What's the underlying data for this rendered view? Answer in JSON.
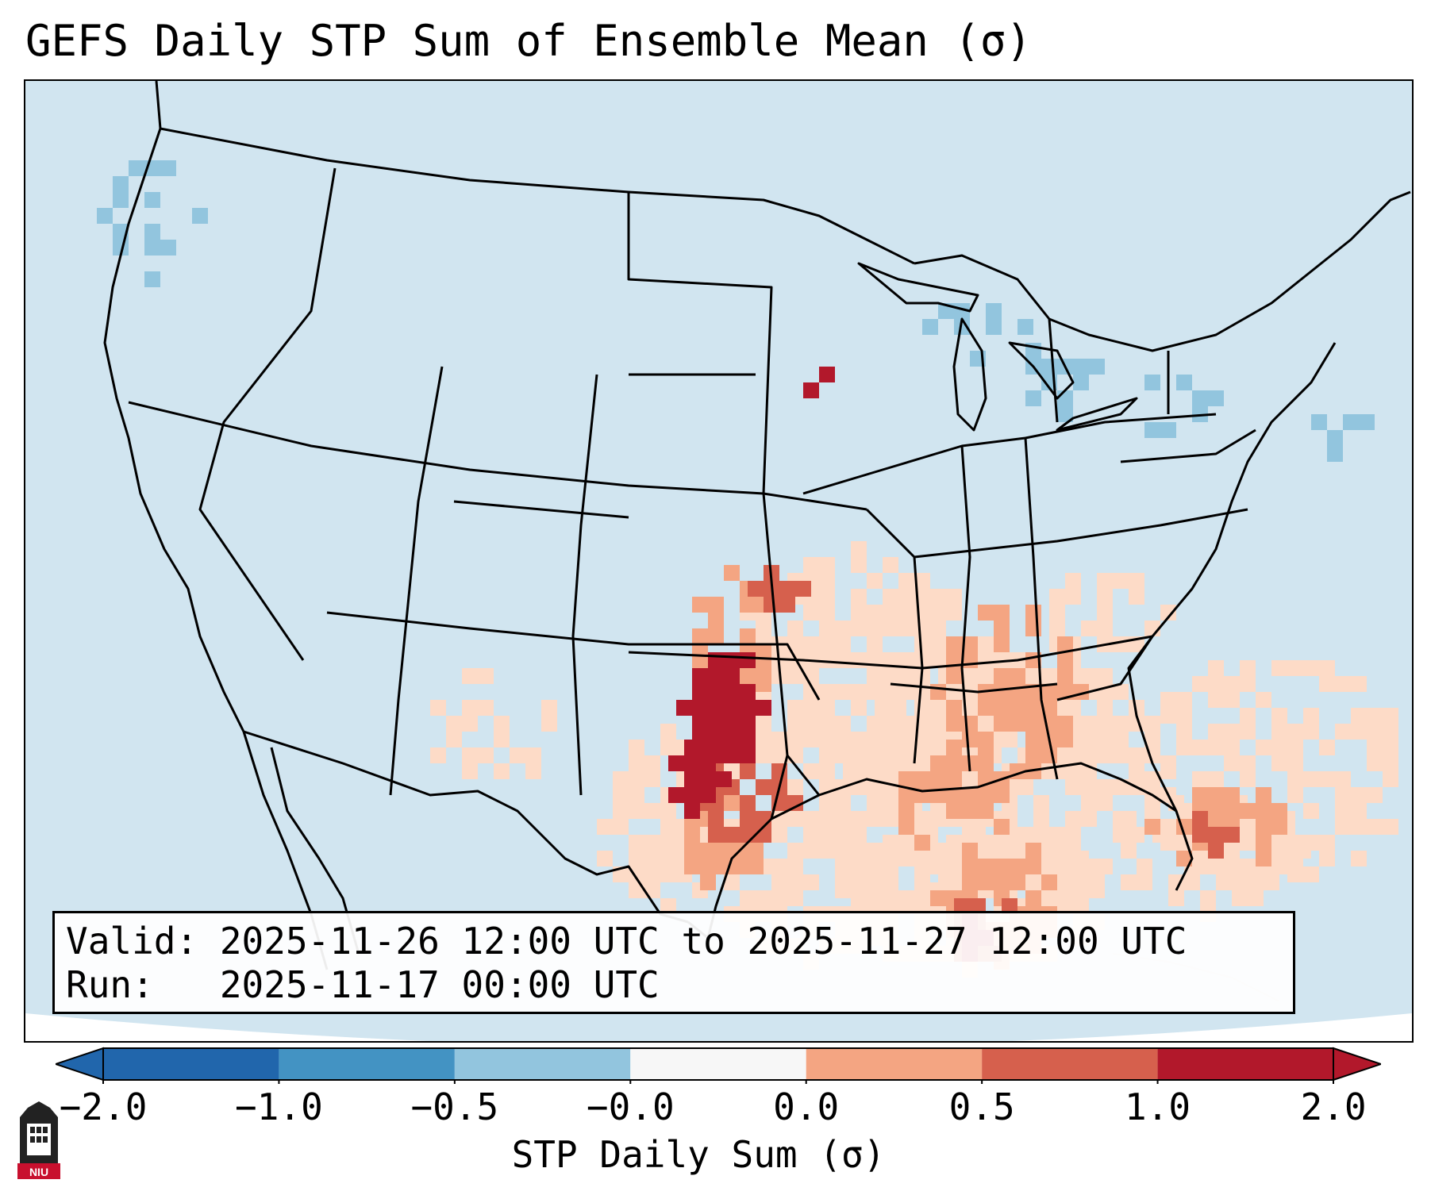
{
  "title": "GEFS Daily STP Sum of Ensemble Mean (σ)",
  "info": {
    "valid_line": "Valid: 2025-11-26 12:00 UTC to 2025-11-27 12:00 UTC",
    "run_line": "Run:   2025-11-17 00:00 UTC"
  },
  "colorbar": {
    "label": "STP Daily Sum (σ)",
    "ticks": [
      "−2.0",
      "−1.0",
      "−0.5",
      "−0.0",
      "0.0",
      "0.5",
      "1.0",
      "2.0"
    ],
    "colors": [
      "#2166ac",
      "#4393c3",
      "#92c5de",
      "#d1e5f0",
      "#fddbc7",
      "#f4a582",
      "#d6604d",
      "#b2182b"
    ],
    "extend": "both"
  },
  "map": {
    "background_color": "#d1e5f0",
    "border_color": "#000000",
    "region": "CONUS"
  },
  "logo": {
    "text": "NIU"
  }
}
